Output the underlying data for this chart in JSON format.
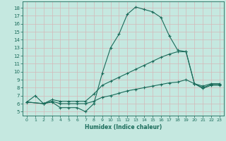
{
  "xlabel": "Humidex (Indice chaleur)",
  "xlim": [
    -0.5,
    23.5
  ],
  "ylim": [
    4.5,
    18.8
  ],
  "xticks": [
    0,
    1,
    2,
    3,
    4,
    5,
    6,
    7,
    8,
    9,
    10,
    11,
    12,
    13,
    14,
    15,
    16,
    17,
    18,
    19,
    20,
    21,
    22,
    23
  ],
  "yticks": [
    5,
    6,
    7,
    8,
    9,
    10,
    11,
    12,
    13,
    14,
    15,
    16,
    17,
    18
  ],
  "bg_color": "#c5e8e0",
  "grid_color": "#b0d8ce",
  "line_color": "#1a6b5a",
  "line1_x": [
    0,
    1,
    2,
    3,
    4,
    5,
    6,
    7,
    8,
    9,
    10,
    11,
    12,
    13,
    14,
    15,
    16,
    17,
    18,
    19,
    20,
    21,
    22,
    23
  ],
  "line1_y": [
    6.2,
    7.0,
    6.0,
    6.2,
    5.5,
    5.5,
    5.5,
    5.0,
    6.0,
    9.8,
    13.0,
    14.7,
    17.2,
    18.1,
    17.8,
    17.5,
    16.8,
    14.5,
    12.7,
    12.5,
    8.5,
    8.2,
    8.5,
    8.5
  ],
  "line2_x": [
    0,
    2,
    3,
    4,
    5,
    6,
    7,
    8,
    9,
    10,
    11,
    12,
    13,
    14,
    15,
    16,
    17,
    18,
    19,
    20,
    21,
    22,
    23
  ],
  "line2_y": [
    6.2,
    6.0,
    6.5,
    6.3,
    6.3,
    6.3,
    6.3,
    7.2,
    8.3,
    8.8,
    9.3,
    9.8,
    10.3,
    10.8,
    11.3,
    11.8,
    12.2,
    12.5,
    12.5,
    8.5,
    8.0,
    8.4,
    8.4
  ],
  "line3_x": [
    0,
    2,
    3,
    4,
    5,
    6,
    7,
    8,
    9,
    10,
    11,
    12,
    13,
    14,
    15,
    16,
    17,
    18,
    19,
    20,
    21,
    22,
    23
  ],
  "line3_y": [
    6.2,
    6.0,
    6.3,
    6.0,
    6.0,
    6.0,
    6.0,
    6.3,
    6.8,
    7.0,
    7.3,
    7.6,
    7.8,
    8.0,
    8.2,
    8.4,
    8.6,
    8.7,
    9.0,
    8.5,
    7.9,
    8.3,
    8.3
  ]
}
